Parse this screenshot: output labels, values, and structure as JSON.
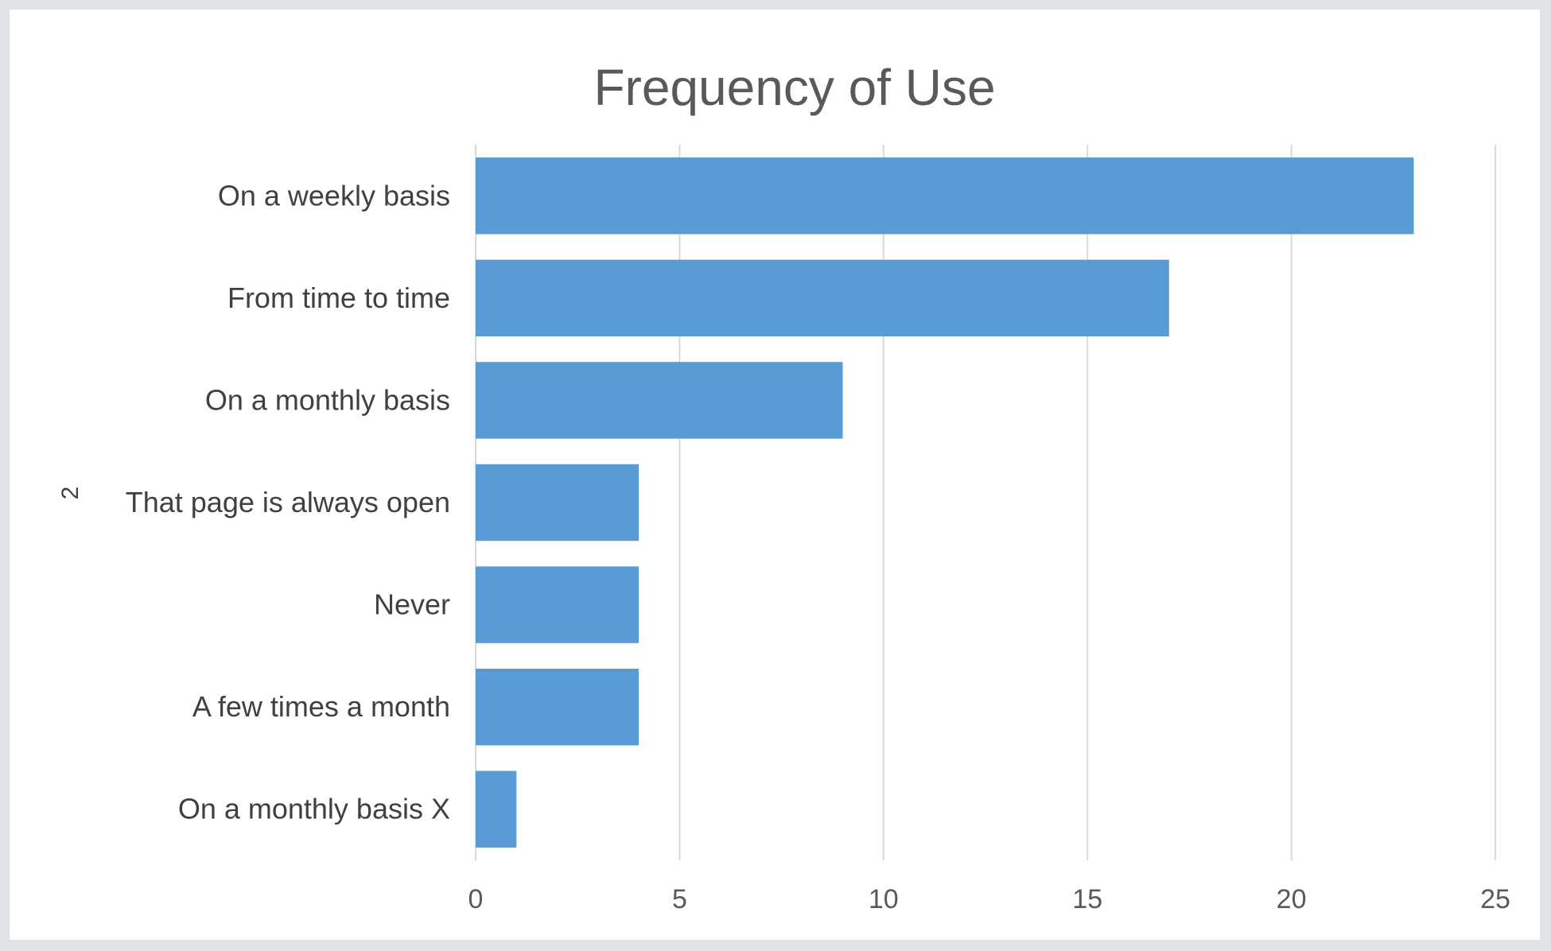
{
  "chart_data": {
    "type": "bar",
    "orientation": "horizontal",
    "title": "Frequency of Use",
    "ylabel": "2",
    "xlabel": "",
    "categories": [
      "On a weekly basis",
      "From time to time",
      "On a monthly basis",
      "That page is always open",
      "Never",
      "A few times a month",
      "On a monthly basis X"
    ],
    "values": [
      23,
      17,
      9,
      4,
      4,
      4,
      1
    ],
    "xlim": [
      0,
      25
    ],
    "xticks": [
      "0",
      "5",
      "10",
      "15",
      "20",
      "25"
    ],
    "grid": true,
    "legend": "none",
    "colors": {
      "bar": "#5b9bd5",
      "grid": "#d9d9d9",
      "border": "#dfe3e8"
    }
  }
}
